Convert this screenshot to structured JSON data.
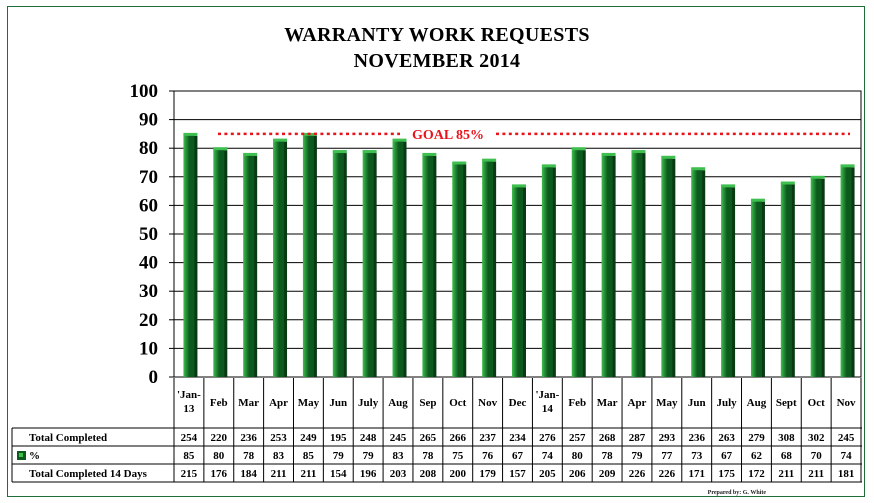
{
  "header": {
    "title_line1": "WARRANTY WORK  REQUESTS",
    "title_line2": "NOVEMBER 2014"
  },
  "colors": {
    "bar_dark": "#0d5a1e",
    "bar_light": "#3fbf4f",
    "goal": "#e8141c",
    "border": "#1f6e3a"
  },
  "footer": {
    "credit": "Prepared by:  G. White"
  },
  "chart_data": {
    "type": "bar",
    "categories": [
      "'Jan-13",
      "Feb",
      "Mar",
      "Apr",
      "May",
      "Jun",
      "July",
      "Aug",
      "Sep",
      "Oct",
      "Nov",
      "Dec",
      "'Jan-14",
      "Feb",
      "Mar",
      "Apr",
      "May",
      "Jun",
      "July",
      "Aug",
      "Sept",
      "Oct",
      "Nov"
    ],
    "values": [
      85,
      80,
      78,
      83,
      85,
      79,
      79,
      83,
      78,
      75,
      76,
      67,
      74,
      80,
      78,
      79,
      77,
      73,
      67,
      62,
      68,
      70,
      74
    ],
    "ylim": [
      0,
      100
    ],
    "yticks": [
      0,
      10,
      20,
      30,
      40,
      50,
      60,
      70,
      80,
      90,
      100
    ],
    "grid": true,
    "goal": {
      "value": 85,
      "label": "GOAL 85%"
    },
    "table": {
      "rows": [
        {
          "label": "Total Completed",
          "values": [
            254,
            220,
            236,
            253,
            249,
            195,
            248,
            245,
            265,
            266,
            237,
            234,
            276,
            257,
            268,
            287,
            293,
            236,
            263,
            279,
            308,
            302,
            245
          ]
        },
        {
          "label": "%",
          "values": [
            85,
            80,
            78,
            83,
            85,
            79,
            79,
            83,
            78,
            75,
            76,
            67,
            74,
            80,
            78,
            79,
            77,
            73,
            67,
            62,
            68,
            70,
            74
          ]
        },
        {
          "label": "Total Completed 14 Days",
          "values": [
            215,
            176,
            184,
            211,
            211,
            154,
            196,
            203,
            208,
            200,
            179,
            157,
            205,
            206,
            209,
            226,
            226,
            171,
            175,
            172,
            211,
            211,
            181
          ]
        }
      ]
    }
  }
}
